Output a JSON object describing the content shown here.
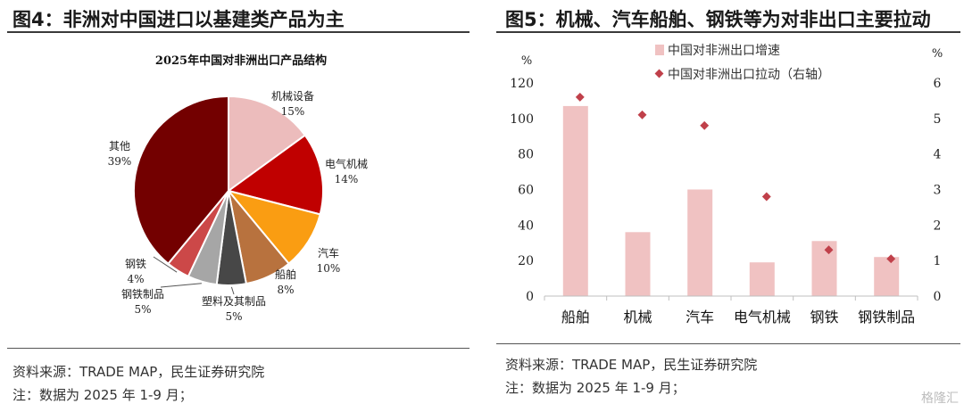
{
  "left": {
    "figure_title": "图4：非洲对中国进口以基建类产品为主",
    "source_note": "资料来源：TRADE MAP，民生证券研究院",
    "extra_note": "注：数据为 2025 年 1-9 月；"
  },
  "right": {
    "figure_title": "图5：机械、汽车船舶、钢铁等为对非出口主要拉动",
    "source_note": "资料来源：TRADE MAP，民生证券研究院",
    "extra_note": "注：数据为 2025 年 1-9 月；"
  },
  "watermark": "格隆汇",
  "chart_data": [
    {
      "type": "pie",
      "title": "2025年中国对非洲出口产品结构",
      "slices": [
        {
          "label": "机械设备",
          "value": 15,
          "value_label": "15%",
          "color": "#ecbcbc"
        },
        {
          "label": "电气机械",
          "value": 14,
          "value_label": "14%",
          "color": "#c00000"
        },
        {
          "label": "汽车",
          "value": 10,
          "value_label": "10%",
          "color": "#fa9d12"
        },
        {
          "label": "船舶",
          "value": 8,
          "value_label": "8%",
          "color": "#b8723e"
        },
        {
          "label": "塑料及其制品",
          "value": 5,
          "value_label": "5%",
          "color": "#474747"
        },
        {
          "label": "钢铁制品",
          "value": 5,
          "value_label": "5%",
          "color": "#a6a6a6"
        },
        {
          "label": "钢铁",
          "value": 4,
          "value_label": "4%",
          "color": "#cc4848"
        },
        {
          "label": "其他",
          "value": 39,
          "value_label": "39%",
          "color": "#730000"
        }
      ]
    },
    {
      "type": "bar",
      "categories": [
        "船舶",
        "机械",
        "汽车",
        "电气机械",
        "钢铁",
        "钢铁制品"
      ],
      "series": [
        {
          "name": "中国对非洲出口增速",
          "type": "bar",
          "axis": "left",
          "color": "#f0c2c2",
          "values": [
            107,
            36,
            60,
            19,
            31,
            22
          ]
        },
        {
          "name": "中国对非洲出口拉动（右轴）",
          "type": "scatter",
          "axis": "right",
          "color": "#c0404a",
          "values": [
            5.6,
            5.1,
            4.8,
            2.8,
            1.3,
            1.05
          ]
        }
      ],
      "ylabel": "%",
      "y2label": "%",
      "ylim": [
        0,
        120
      ],
      "y2lim": [
        0,
        6
      ],
      "yticks": [
        "0",
        "20",
        "40",
        "60",
        "80",
        "100",
        "120"
      ],
      "y2ticks": [
        "0",
        "1",
        "2",
        "3",
        "4",
        "5",
        "6"
      ],
      "legend_position": "top"
    }
  ]
}
